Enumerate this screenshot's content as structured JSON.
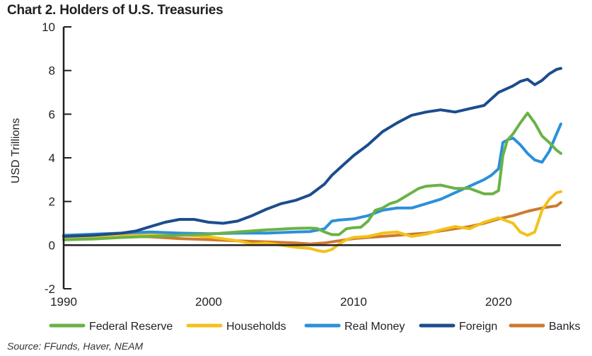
{
  "chart_data": {
    "type": "line",
    "title": "Chart 2. Holders of U.S. Treasuries",
    "xlabel": "",
    "ylabel": "USD Trillions",
    "xlim": [
      1990,
      2024.3
    ],
    "ylim": [
      -2,
      10
    ],
    "xticks": [
      1990,
      2000,
      2010,
      2020
    ],
    "yticks": [
      -2,
      0,
      2,
      4,
      6,
      8,
      10
    ],
    "series": [
      {
        "name": "Federal Reserve",
        "color": "#6ab245",
        "points": [
          [
            1990,
            0.24
          ],
          [
            1992,
            0.28
          ],
          [
            1994,
            0.35
          ],
          [
            1996,
            0.4
          ],
          [
            1998,
            0.45
          ],
          [
            2000,
            0.5
          ],
          [
            2002,
            0.6
          ],
          [
            2004,
            0.7
          ],
          [
            2006,
            0.77
          ],
          [
            2007,
            0.78
          ],
          [
            2007.5,
            0.76
          ],
          [
            2008,
            0.6
          ],
          [
            2008.5,
            0.48
          ],
          [
            2009,
            0.48
          ],
          [
            2009.5,
            0.75
          ],
          [
            2010,
            0.8
          ],
          [
            2010.5,
            0.82
          ],
          [
            2011,
            1.1
          ],
          [
            2011.5,
            1.6
          ],
          [
            2012,
            1.7
          ],
          [
            2012.5,
            1.9
          ],
          [
            2013,
            2.0
          ],
          [
            2013.5,
            2.2
          ],
          [
            2014,
            2.4
          ],
          [
            2014.5,
            2.6
          ],
          [
            2015,
            2.7
          ],
          [
            2016,
            2.75
          ],
          [
            2017,
            2.6
          ],
          [
            2018,
            2.6
          ],
          [
            2019,
            2.35
          ],
          [
            2019.6,
            2.35
          ],
          [
            2020,
            2.5
          ],
          [
            2020.3,
            4.1
          ],
          [
            2020.6,
            4.8
          ],
          [
            2021,
            5.1
          ],
          [
            2021.5,
            5.6
          ],
          [
            2022,
            6.05
          ],
          [
            2022.5,
            5.6
          ],
          [
            2023,
            5.0
          ],
          [
            2023.5,
            4.7
          ],
          [
            2024,
            4.35
          ],
          [
            2024.3,
            4.2
          ]
        ]
      },
      {
        "name": "Households",
        "color": "#f2c11b",
        "points": [
          [
            1990,
            0.3
          ],
          [
            1992,
            0.38
          ],
          [
            1994,
            0.45
          ],
          [
            1996,
            0.52
          ],
          [
            1998,
            0.48
          ],
          [
            2000,
            0.38
          ],
          [
            2002,
            0.2
          ],
          [
            2003,
            0.05
          ],
          [
            2004,
            0.1
          ],
          [
            2005,
            0.0
          ],
          [
            2006,
            -0.1
          ],
          [
            2007,
            -0.15
          ],
          [
            2007.5,
            -0.25
          ],
          [
            2008,
            -0.3
          ],
          [
            2008.5,
            -0.2
          ],
          [
            2009,
            0.05
          ],
          [
            2009.5,
            0.25
          ],
          [
            2010,
            0.35
          ],
          [
            2011,
            0.4
          ],
          [
            2012,
            0.55
          ],
          [
            2013,
            0.6
          ],
          [
            2014,
            0.4
          ],
          [
            2015,
            0.5
          ],
          [
            2016,
            0.7
          ],
          [
            2017,
            0.85
          ],
          [
            2018,
            0.75
          ],
          [
            2019,
            1.05
          ],
          [
            2020,
            1.25
          ],
          [
            2021,
            1.0
          ],
          [
            2021.5,
            0.6
          ],
          [
            2022,
            0.45
          ],
          [
            2022.5,
            0.6
          ],
          [
            2023,
            1.6
          ],
          [
            2023.5,
            2.1
          ],
          [
            2024,
            2.4
          ],
          [
            2024.3,
            2.45
          ]
        ]
      },
      {
        "name": "Real Money",
        "color": "#2b90d9",
        "points": [
          [
            1990,
            0.45
          ],
          [
            1992,
            0.5
          ],
          [
            1994,
            0.55
          ],
          [
            1996,
            0.6
          ],
          [
            1998,
            0.55
          ],
          [
            2000,
            0.52
          ],
          [
            2002,
            0.55
          ],
          [
            2004,
            0.55
          ],
          [
            2006,
            0.6
          ],
          [
            2007,
            0.62
          ],
          [
            2008,
            0.75
          ],
          [
            2008.5,
            1.1
          ],
          [
            2009,
            1.15
          ],
          [
            2010,
            1.2
          ],
          [
            2011,
            1.35
          ],
          [
            2012,
            1.6
          ],
          [
            2013,
            1.7
          ],
          [
            2014,
            1.7
          ],
          [
            2015,
            1.9
          ],
          [
            2016,
            2.1
          ],
          [
            2017,
            2.4
          ],
          [
            2018,
            2.7
          ],
          [
            2019,
            3.0
          ],
          [
            2019.5,
            3.2
          ],
          [
            2020,
            3.5
          ],
          [
            2020.3,
            4.7
          ],
          [
            2020.7,
            4.85
          ],
          [
            2021,
            4.9
          ],
          [
            2021.5,
            4.6
          ],
          [
            2022,
            4.2
          ],
          [
            2022.5,
            3.9
          ],
          [
            2023,
            3.8
          ],
          [
            2023.5,
            4.3
          ],
          [
            2024,
            5.1
          ],
          [
            2024.3,
            5.55
          ]
        ]
      },
      {
        "name": "Foreign",
        "color": "#1c4d8c",
        "points": [
          [
            1990,
            0.4
          ],
          [
            1992,
            0.45
          ],
          [
            1994,
            0.55
          ],
          [
            1995,
            0.65
          ],
          [
            1996,
            0.85
          ],
          [
            1997,
            1.05
          ],
          [
            1998,
            1.18
          ],
          [
            1999,
            1.18
          ],
          [
            2000,
            1.05
          ],
          [
            2001,
            1.0
          ],
          [
            2002,
            1.1
          ],
          [
            2003,
            1.35
          ],
          [
            2004,
            1.65
          ],
          [
            2005,
            1.9
          ],
          [
            2006,
            2.05
          ],
          [
            2007,
            2.3
          ],
          [
            2008,
            2.8
          ],
          [
            2008.5,
            3.2
          ],
          [
            2009,
            3.5
          ],
          [
            2010,
            4.1
          ],
          [
            2011,
            4.6
          ],
          [
            2012,
            5.2
          ],
          [
            2013,
            5.6
          ],
          [
            2014,
            5.95
          ],
          [
            2015,
            6.1
          ],
          [
            2016,
            6.2
          ],
          [
            2017,
            6.1
          ],
          [
            2018,
            6.25
          ],
          [
            2019,
            6.4
          ],
          [
            2020,
            7.0
          ],
          [
            2021,
            7.3
          ],
          [
            2021.5,
            7.5
          ],
          [
            2022,
            7.6
          ],
          [
            2022.5,
            7.35
          ],
          [
            2023,
            7.55
          ],
          [
            2023.5,
            7.85
          ],
          [
            2024,
            8.05
          ],
          [
            2024.3,
            8.1
          ]
        ]
      },
      {
        "name": "Banks",
        "color": "#cd7a2e",
        "points": [
          [
            1990,
            0.3
          ],
          [
            1992,
            0.35
          ],
          [
            1994,
            0.4
          ],
          [
            1996,
            0.38
          ],
          [
            1998,
            0.3
          ],
          [
            2000,
            0.25
          ],
          [
            2002,
            0.2
          ],
          [
            2004,
            0.15
          ],
          [
            2006,
            0.1
          ],
          [
            2007,
            0.05
          ],
          [
            2008,
            0.1
          ],
          [
            2009,
            0.2
          ],
          [
            2010,
            0.3
          ],
          [
            2011,
            0.35
          ],
          [
            2012,
            0.4
          ],
          [
            2013,
            0.45
          ],
          [
            2014,
            0.5
          ],
          [
            2015,
            0.55
          ],
          [
            2016,
            0.65
          ],
          [
            2017,
            0.75
          ],
          [
            2018,
            0.85
          ],
          [
            2019,
            1.0
          ],
          [
            2020,
            1.2
          ],
          [
            2021,
            1.35
          ],
          [
            2022,
            1.55
          ],
          [
            2023,
            1.7
          ],
          [
            2024,
            1.8
          ],
          [
            2024.3,
            1.95
          ]
        ]
      }
    ]
  },
  "source": "Source: FFunds, Haver, NEAM"
}
